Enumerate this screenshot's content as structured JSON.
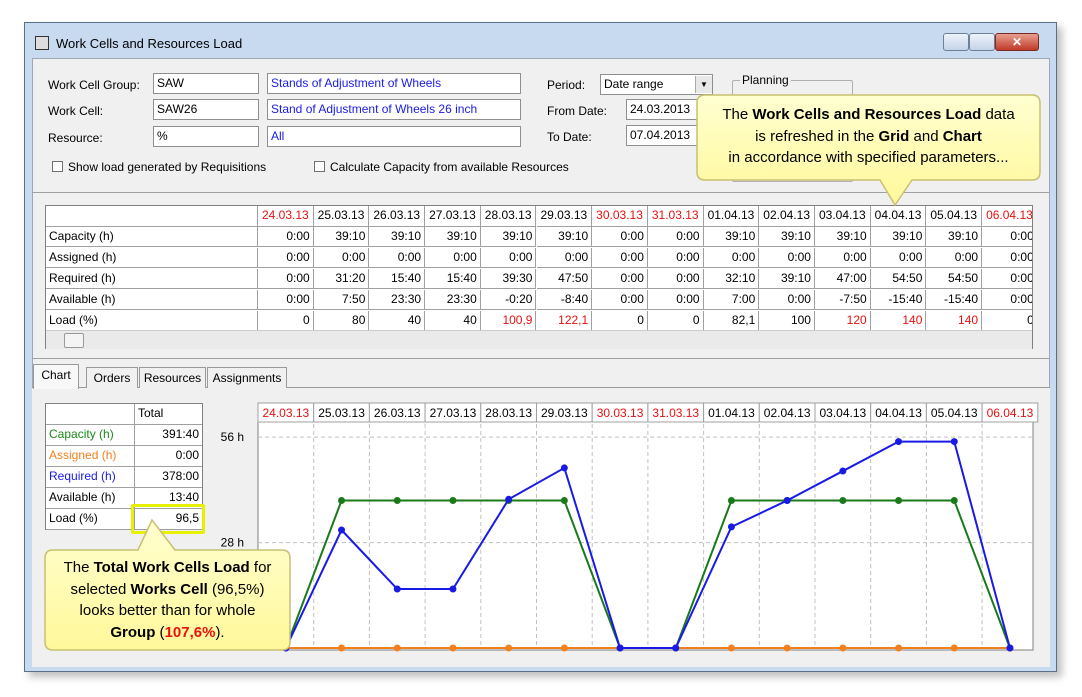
{
  "window": {
    "title": "Work Cells and Resources Load"
  },
  "form": {
    "work_cell_group": {
      "label": "Work Cell Group:",
      "code": "SAW",
      "description": "Stands of Adjustment of Wheels"
    },
    "work_cell": {
      "label": "Work Cell:",
      "code": "SAW26",
      "description": "Stand of Adjustment of Wheels 26 inch"
    },
    "resource": {
      "label": "Resource:",
      "code": "%",
      "description": "All"
    },
    "show_requisitions": "Show load generated by Requisitions",
    "calc_capacity": "Calculate Capacity from available Resources",
    "period": {
      "label": "Period:",
      "value": "Date range"
    },
    "from_date": {
      "label": "From Date:",
      "value": "24.03.2013"
    },
    "to_date": {
      "label": "To Date:",
      "value": "07.04.2013"
    },
    "planning": "Planning"
  },
  "grid": {
    "columns": [
      "24.03.13",
      "25.03.13",
      "26.03.13",
      "27.03.13",
      "28.03.13",
      "29.03.13",
      "30.03.13",
      "31.03.13",
      "01.04.13",
      "02.04.13",
      "03.04.13",
      "04.04.13",
      "05.04.13",
      "06.04.13"
    ],
    "red_columns": [
      0,
      6,
      7,
      13
    ],
    "rows": [
      {
        "label": "Capacity (h)",
        "cells": [
          "0:00",
          "39:10",
          "39:10",
          "39:10",
          "39:10",
          "39:10",
          "0:00",
          "0:00",
          "39:10",
          "39:10",
          "39:10",
          "39:10",
          "39:10",
          "0:00"
        ],
        "red": []
      },
      {
        "label": "Assigned (h)",
        "cells": [
          "0:00",
          "0:00",
          "0:00",
          "0:00",
          "0:00",
          "0:00",
          "0:00",
          "0:00",
          "0:00",
          "0:00",
          "0:00",
          "0:00",
          "0:00",
          "0:00"
        ],
        "red": []
      },
      {
        "label": "Required (h)",
        "cells": [
          "0:00",
          "31:20",
          "15:40",
          "15:40",
          "39:30",
          "47:50",
          "0:00",
          "0:00",
          "32:10",
          "39:10",
          "47:00",
          "54:50",
          "54:50",
          "0:00"
        ],
        "red": []
      },
      {
        "label": "Available (h)",
        "cells": [
          "0:00",
          "7:50",
          "23:30",
          "23:30",
          "-0:20",
          "-8:40",
          "0:00",
          "0:00",
          "7:00",
          "0:00",
          "-7:50",
          "-15:40",
          "-15:40",
          "0:00"
        ],
        "red": []
      },
      {
        "label": "Load (%)",
        "cells": [
          "0",
          "80",
          "40",
          "40",
          "100,9",
          "122,1",
          "0",
          "0",
          "82,1",
          "100",
          "120",
          "140",
          "140",
          "0"
        ],
        "red": [
          4,
          5,
          10,
          11,
          12
        ]
      }
    ]
  },
  "tabs": [
    "Chart",
    "Orders",
    "Resources",
    "Assignments"
  ],
  "totals": {
    "header": "Total",
    "rows": [
      {
        "label": "Capacity (h)",
        "value": "391:40",
        "color": "#1a8a1a"
      },
      {
        "label": "Assigned (h)",
        "value": "0:00",
        "color": "#f08020"
      },
      {
        "label": "Required (h)",
        "value": "378:00",
        "color": "#1a1ae6"
      },
      {
        "label": "Available (h)",
        "value": "13:40",
        "color": "#000000"
      },
      {
        "label": "Load (%)",
        "value": "96,5",
        "color": "#000000"
      }
    ]
  },
  "chart_data": {
    "type": "line",
    "categories": [
      "24.03.13",
      "25.03.13",
      "26.03.13",
      "27.03.13",
      "28.03.13",
      "29.03.13",
      "30.03.13",
      "31.03.13",
      "01.04.13",
      "02.04.13",
      "03.04.13",
      "04.04.13",
      "05.04.13",
      "06.04.13"
    ],
    "red_categories": [
      0,
      6,
      7,
      13
    ],
    "series": [
      {
        "name": "Capacity (h)",
        "color": "#1a7a1a",
        "values": [
          0,
          39.17,
          39.17,
          39.17,
          39.17,
          39.17,
          0,
          0,
          39.17,
          39.17,
          39.17,
          39.17,
          39.17,
          0
        ]
      },
      {
        "name": "Assigned (h)",
        "color": "#f08020",
        "values": [
          0,
          0,
          0,
          0,
          0,
          0,
          0,
          0,
          0,
          0,
          0,
          0,
          0,
          0
        ]
      },
      {
        "name": "Required (h)",
        "color": "#1a1ae6",
        "values": [
          0,
          31.33,
          15.67,
          15.67,
          39.5,
          47.83,
          0,
          0,
          32.17,
          39.17,
          47,
          54.83,
          54.83,
          0
        ]
      }
    ],
    "ylim": [
      0,
      59.5
    ],
    "yticks": [
      {
        "value": 28,
        "label": "28 h"
      },
      {
        "value": 56,
        "label": "56 h"
      }
    ],
    "grid": true
  },
  "callouts": [
    {
      "lines": [
        [
          {
            "text": "The "
          },
          {
            "text": "Work Cells and Resources Load",
            "style": "bold"
          },
          {
            "text": " data"
          }
        ],
        [
          {
            "text": "is refreshed in the "
          },
          {
            "text": "Grid",
            "style": "bold"
          },
          {
            "text": " and "
          },
          {
            "text": "Chart",
            "style": "bold"
          }
        ],
        [
          {
            "text": "in accordance with specified parameters..."
          }
        ]
      ]
    },
    {
      "lines": [
        [
          {
            "text": "The "
          },
          {
            "text": "Total Work Cells Load",
            "style": "bold"
          },
          {
            "text": " for"
          }
        ],
        [
          {
            "text": "selected "
          },
          {
            "text": "Works Cell",
            "style": "bold"
          },
          {
            "text": " (96,5%)"
          }
        ],
        [
          {
            "text": "looks better than for whole"
          }
        ],
        [
          {
            "text": "Group",
            "style": "bold"
          },
          {
            "text": " ("
          },
          {
            "text": "107,6%",
            "style": "red"
          },
          {
            "text": ")."
          }
        ]
      ]
    }
  ]
}
